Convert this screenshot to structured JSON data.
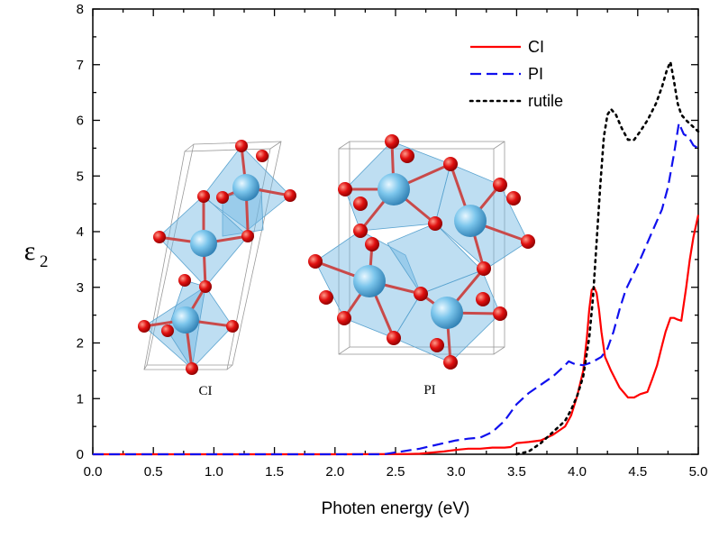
{
  "chart_data": {
    "type": "line",
    "xlabel": "Photen energy (eV)",
    "ylabel_main": "ε",
    "ylabel_sub": "2",
    "xlim": [
      0.0,
      5.0
    ],
    "ylim": [
      0,
      8
    ],
    "x_ticks": [
      "0.0",
      "0.5",
      "1.0",
      "1.5",
      "2.0",
      "2.5",
      "3.0",
      "3.5",
      "4.0",
      "4.5",
      "5.0"
    ],
    "y_ticks": [
      "0",
      "1",
      "2",
      "3",
      "4",
      "5",
      "6",
      "7",
      "8"
    ],
    "legend_position": "top-right",
    "grid": false,
    "series": [
      {
        "name": "CI",
        "color": "#ff0000",
        "dash": "solid",
        "points": [
          [
            0.0,
            0
          ],
          [
            2.0,
            0
          ],
          [
            2.6,
            0.005
          ],
          [
            2.7,
            0.01
          ],
          [
            2.8,
            0.03
          ],
          [
            2.9,
            0.05
          ],
          [
            3.0,
            0.08
          ],
          [
            3.1,
            0.1
          ],
          [
            3.2,
            0.1
          ],
          [
            3.3,
            0.12
          ],
          [
            3.4,
            0.12
          ],
          [
            3.45,
            0.13
          ],
          [
            3.5,
            0.2
          ],
          [
            3.6,
            0.22
          ],
          [
            3.7,
            0.25
          ],
          [
            3.8,
            0.35
          ],
          [
            3.9,
            0.5
          ],
          [
            3.95,
            0.7
          ],
          [
            4.0,
            1.05
          ],
          [
            4.05,
            1.5
          ],
          [
            4.08,
            2.1
          ],
          [
            4.1,
            2.6
          ],
          [
            4.12,
            2.95
          ],
          [
            4.14,
            3.0
          ],
          [
            4.16,
            2.9
          ],
          [
            4.18,
            2.6
          ],
          [
            4.2,
            2.2
          ],
          [
            4.23,
            1.75
          ],
          [
            4.28,
            1.5
          ],
          [
            4.35,
            1.2
          ],
          [
            4.42,
            1.02
          ],
          [
            4.47,
            1.02
          ],
          [
            4.52,
            1.08
          ],
          [
            4.58,
            1.12
          ],
          [
            4.62,
            1.35
          ],
          [
            4.66,
            1.6
          ],
          [
            4.7,
            1.95
          ],
          [
            4.73,
            2.2
          ],
          [
            4.77,
            2.45
          ],
          [
            4.8,
            2.45
          ],
          [
            4.83,
            2.42
          ],
          [
            4.86,
            2.4
          ],
          [
            4.9,
            3.0
          ],
          [
            4.93,
            3.5
          ],
          [
            4.96,
            3.9
          ],
          [
            5.0,
            4.3
          ]
        ]
      },
      {
        "name": "PI",
        "color": "#1010ee",
        "dash": "dashed",
        "points": [
          [
            0.0,
            0
          ],
          [
            2.4,
            0
          ],
          [
            2.55,
            0.05
          ],
          [
            2.7,
            0.1
          ],
          [
            2.8,
            0.15
          ],
          [
            2.9,
            0.2
          ],
          [
            3.0,
            0.25
          ],
          [
            3.1,
            0.28
          ],
          [
            3.2,
            0.3
          ],
          [
            3.3,
            0.4
          ],
          [
            3.4,
            0.6
          ],
          [
            3.5,
            0.9
          ],
          [
            3.6,
            1.1
          ],
          [
            3.7,
            1.25
          ],
          [
            3.8,
            1.4
          ],
          [
            3.9,
            1.6
          ],
          [
            3.93,
            1.67
          ],
          [
            3.98,
            1.62
          ],
          [
            4.05,
            1.6
          ],
          [
            4.12,
            1.65
          ],
          [
            4.2,
            1.75
          ],
          [
            4.25,
            1.9
          ],
          [
            4.3,
            2.2
          ],
          [
            4.35,
            2.6
          ],
          [
            4.4,
            2.95
          ],
          [
            4.5,
            3.4
          ],
          [
            4.6,
            3.9
          ],
          [
            4.7,
            4.4
          ],
          [
            4.75,
            4.8
          ],
          [
            4.8,
            5.4
          ],
          [
            4.84,
            5.95
          ],
          [
            4.88,
            5.75
          ],
          [
            4.92,
            5.7
          ],
          [
            4.96,
            5.55
          ],
          [
            5.0,
            5.5
          ]
        ]
      },
      {
        "name": "rutile",
        "color": "#000000",
        "dash": "dotted",
        "points": [
          [
            3.5,
            0
          ],
          [
            3.6,
            0.05
          ],
          [
            3.7,
            0.2
          ],
          [
            3.8,
            0.4
          ],
          [
            3.9,
            0.6
          ],
          [
            3.95,
            0.8
          ],
          [
            4.0,
            1.05
          ],
          [
            4.05,
            1.4
          ],
          [
            4.1,
            2.1
          ],
          [
            4.13,
            2.8
          ],
          [
            4.16,
            3.8
          ],
          [
            4.19,
            4.8
          ],
          [
            4.22,
            5.7
          ],
          [
            4.25,
            6.1
          ],
          [
            4.28,
            6.2
          ],
          [
            4.32,
            6.1
          ],
          [
            4.37,
            5.85
          ],
          [
            4.42,
            5.65
          ],
          [
            4.47,
            5.65
          ],
          [
            4.52,
            5.8
          ],
          [
            4.58,
            6.0
          ],
          [
            4.65,
            6.3
          ],
          [
            4.7,
            6.6
          ],
          [
            4.74,
            6.9
          ],
          [
            4.77,
            7.05
          ],
          [
            4.8,
            6.7
          ],
          [
            4.83,
            6.3
          ],
          [
            4.86,
            6.1
          ],
          [
            4.9,
            6.0
          ],
          [
            4.95,
            5.9
          ],
          [
            5.0,
            5.8
          ]
        ]
      }
    ],
    "annotations": [
      "CI",
      "PI"
    ]
  }
}
